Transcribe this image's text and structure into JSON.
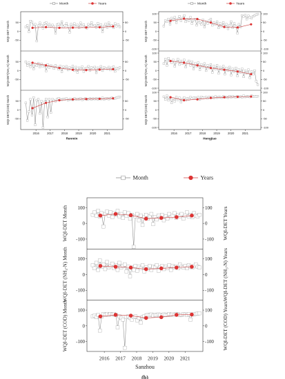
{
  "chart_data": [
    {
      "type": "line",
      "title": "",
      "xlabel": "Renmin",
      "legend": {
        "placement": "top",
        "entries": [
          "Month",
          "Years"
        ]
      },
      "x_ticks": [
        "2016",
        "2017",
        "2018",
        "2019",
        "2020",
        "2021"
      ],
      "panels": [
        {
          "ylabel": "WQI-DET Month",
          "ylabel_right": "",
          "ylim": [
            -100,
            100
          ],
          "month": [
            25,
            34,
            -2,
            58,
            53,
            29,
            40,
            -55,
            32,
            48,
            35,
            18,
            45,
            50,
            28,
            40,
            30,
            36,
            26,
            -10,
            38,
            42,
            30,
            55,
            25,
            33,
            45,
            28,
            -5,
            40,
            30,
            44,
            26,
            36,
            20,
            48,
            30,
            38,
            24,
            18,
            40,
            32,
            50,
            28,
            35,
            22,
            46,
            30,
            38,
            -2,
            30,
            42,
            22,
            48,
            28,
            34,
            20,
            44,
            30,
            38,
            26
          ],
          "years": [
            20,
            24,
            20,
            21,
            22,
            23,
            28
          ]
        },
        {
          "ylabel": "WQI-DET(NH₃-N) Month",
          "ylabel_right": "",
          "ylim": [
            -100,
            100
          ],
          "month": [
            50,
            30,
            45,
            22,
            40,
            10,
            35,
            28,
            42,
            20,
            38,
            26,
            30,
            -2,
            34,
            18,
            28,
            24,
            12,
            30,
            20,
            8,
            26,
            -6,
            22,
            14,
            24,
            4,
            18,
            10,
            26,
            0,
            20,
            -10,
            16,
            8,
            22,
            -5,
            12,
            14,
            24,
            0,
            18,
            10,
            20,
            -12,
            16,
            6,
            24,
            0,
            18,
            12,
            10,
            20,
            4,
            16,
            22,
            -4,
            14,
            10,
            18
          ],
          "years": [
            45,
            30,
            15,
            5,
            3,
            6,
            8
          ]
        },
        {
          "ylabel": "WQI-DET(COD) Month",
          "ylabel_right": "",
          "ylim": [
            -100,
            100
          ],
          "month": [
            40,
            -60,
            -10,
            60,
            -30,
            70,
            -85,
            55,
            60,
            -20,
            50,
            -100,
            45,
            62,
            -40,
            60,
            -15,
            60,
            55,
            50,
            62,
            65,
            60,
            58,
            62,
            60,
            64,
            55,
            60,
            62,
            58,
            64,
            60,
            62,
            60,
            65,
            58,
            62,
            64,
            60,
            62,
            65,
            60,
            64,
            62,
            66,
            60,
            64,
            62,
            68,
            60,
            64,
            66,
            62,
            65,
            68,
            64,
            66,
            70,
            72,
            74
          ],
          "years": [
            10,
            40,
            55,
            60,
            62,
            63,
            66
          ]
        }
      ]
    },
    {
      "type": "line",
      "title": "",
      "xlabel": "Hengjiao",
      "legend": {
        "placement": "top",
        "entries": [
          "Month",
          "Years"
        ]
      },
      "x_ticks": [
        "2016",
        "2017",
        "2018",
        "2019",
        "2020",
        "2021"
      ],
      "panels": [
        {
          "ylabel": "WQI-DET Month",
          "ylabel_right": "",
          "ylim": [
            -100,
            100
          ],
          "month": [
            30,
            60,
            55,
            70,
            40,
            75,
            65,
            80,
            50,
            70,
            85,
            60,
            75,
            90,
            55,
            70,
            60,
            80,
            45,
            65,
            70,
            35,
            60,
            50,
            40,
            65,
            25,
            55,
            45,
            60,
            70,
            35,
            50,
            40,
            55,
            20,
            45,
            30,
            50,
            25,
            40,
            15,
            35,
            55,
            20,
            45,
            30,
            -10,
            40,
            25,
            90,
            85,
            92,
            70,
            88,
            80,
            75,
            86,
            90,
            95,
            98
          ],
          "years": [
            60,
            72,
            70,
            50,
            25,
            22,
            40
          ]
        },
        {
          "ylabel": "WQI-DET(NH₃-N) Month",
          "ylabel_right": "",
          "ylim": [
            -100,
            100
          ],
          "month": [
            40,
            65,
            30,
            70,
            55,
            45,
            60,
            25,
            50,
            65,
            35,
            55,
            40,
            60,
            20,
            45,
            55,
            30,
            50,
            10,
            40,
            25,
            45,
            5,
            35,
            20,
            40,
            0,
            30,
            15,
            35,
            -10,
            25,
            10,
            30,
            -15,
            20,
            5,
            25,
            -20,
            15,
            0,
            20,
            -25,
            10,
            -5,
            15,
            -30,
            5,
            -10,
            10,
            -35,
            0,
            -15,
            5,
            -40,
            -5,
            -20,
            0,
            -60,
            -80
          ],
          "years": [
            55,
            45,
            30,
            15,
            5,
            -5,
            -20
          ]
        },
        {
          "ylabel": "WQI-DET(COD) Month",
          "ylabel_right": "",
          "ylim": [
            -100,
            100
          ],
          "month": [
            75,
            60,
            80,
            55,
            70,
            40,
            65,
            50,
            72,
            58,
            68,
            45,
            62,
            70,
            55,
            66,
            60,
            72,
            64,
            68,
            70,
            66,
            72,
            60,
            74,
            68,
            70,
            72,
            66,
            74,
            70,
            72,
            68,
            76,
            70,
            74,
            72,
            70,
            76,
            72,
            74,
            70,
            78,
            72,
            76,
            74,
            72,
            78,
            74,
            76,
            72,
            80,
            74,
            78,
            76,
            74,
            80,
            76,
            78,
            76,
            78
          ],
          "years": [
            72,
            55,
            60,
            68,
            72,
            74,
            76
          ]
        }
      ]
    },
    {
      "type": "line",
      "title": "",
      "xlabel": "Sanzhou",
      "panel_label": "(b)",
      "legend": {
        "placement": "top",
        "entries": [
          "Month",
          "Years"
        ]
      },
      "x_ticks": [
        "2016",
        "2017",
        "2018",
        "2019",
        "2020",
        "2021"
      ],
      "panels": [
        {
          "ylabel": "WQI-DET Month",
          "ylabel_right": "WQI-DET Years",
          "ylim": [
            -150,
            150
          ],
          "y_ticks": [
            -100,
            0,
            100
          ],
          "month": [
            55,
            70,
            50,
            80,
            45,
            65,
            -20,
            60,
            75,
            50,
            70,
            40,
            65,
            55,
            80,
            45,
            60,
            35,
            70,
            50,
            65,
            30,
            55,
            -150,
            45,
            60,
            20,
            50,
            -10,
            40,
            55,
            30,
            45,
            60,
            -5,
            40,
            25,
            50,
            35,
            55,
            20,
            45,
            30,
            60,
            40,
            50,
            65,
            35,
            55,
            45,
            60,
            30,
            50,
            70,
            45,
            55,
            40,
            65,
            50,
            45,
            55
          ],
          "years": [
            50,
            60,
            52,
            30,
            35,
            40,
            50
          ]
        },
        {
          "ylabel": "WQI-DET (NH₃-N) Month",
          "ylabel_right": "WQI-DET (NH₃-N) Years",
          "ylim": [
            -150,
            150
          ],
          "y_ticks": [
            -100,
            0,
            100
          ],
          "month": [
            60,
            40,
            75,
            30,
            90,
            50,
            65,
            35,
            80,
            45,
            55,
            70,
            40,
            60,
            30,
            75,
            45,
            55,
            65,
            20,
            50,
            -10,
            45,
            30,
            55,
            25,
            50,
            40,
            60,
            20,
            45,
            35,
            55,
            30,
            50,
            45,
            60,
            25,
            45,
            55,
            35,
            50,
            40,
            60,
            30,
            55,
            45,
            50,
            40,
            65,
            50,
            45,
            55,
            40,
            60,
            50,
            45,
            55,
            65,
            50,
            45
          ],
          "years": [
            55,
            50,
            45,
            35,
            40,
            45,
            50
          ]
        },
        {
          "ylabel": "WQI-DET (COD) Month",
          "ylabel_right": "WQI-DET (COD) Years",
          "ylim": [
            -150,
            150
          ],
          "y_ticks": [
            -100,
            0,
            100
          ],
          "month": [
            60,
            65,
            55,
            70,
            -30,
            60,
            75,
            70,
            75,
            70,
            75,
            72,
            75,
            70,
            -10,
            60,
            50,
            40,
            -140,
            55,
            60,
            50,
            40,
            55,
            60,
            35,
            50,
            20,
            55,
            60,
            65,
            70,
            68,
            72,
            65,
            70,
            68,
            72,
            70,
            65,
            72,
            70,
            68,
            75,
            70,
            72,
            70,
            75,
            72,
            68,
            70,
            74,
            72,
            70,
            75,
            40,
            72,
            74,
            76,
            78,
            80
          ],
          "years": [
            60,
            70,
            65,
            50,
            55,
            70,
            72
          ]
        }
      ]
    }
  ]
}
